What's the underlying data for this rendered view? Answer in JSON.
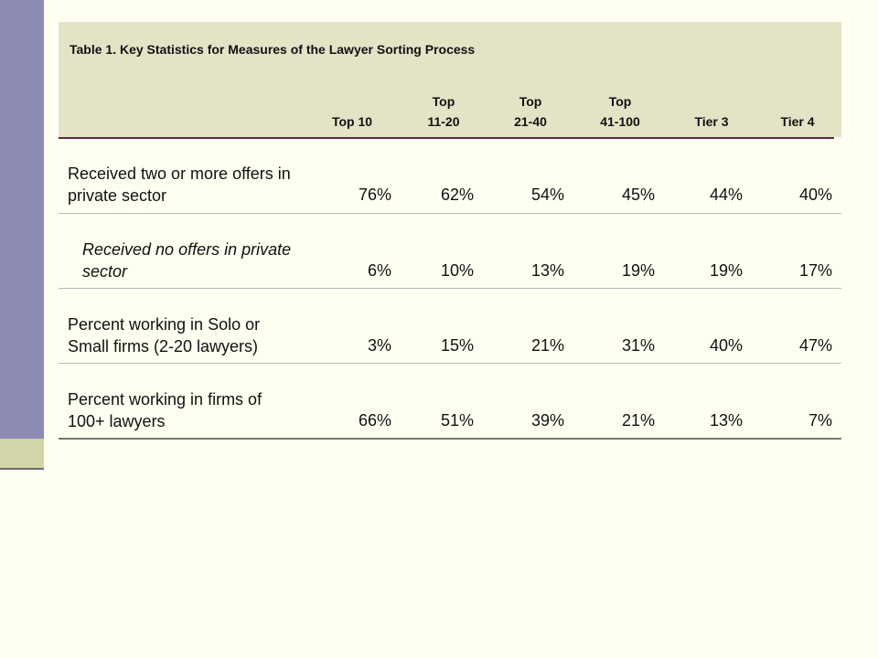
{
  "table": {
    "title": "Table 1. Key Statistics for Measures of the Lawyer Sorting Process",
    "columns": [
      {
        "line1": "Top 10",
        "line2": ""
      },
      {
        "line1": "Top",
        "line2": "11-20"
      },
      {
        "line1": "Top",
        "line2": "21-40"
      },
      {
        "line1": "Top",
        "line2": "41-100"
      },
      {
        "line1": "Tier 3",
        "line2": ""
      },
      {
        "line1": "Tier 4",
        "line2": ""
      }
    ],
    "rows": [
      {
        "label_line1": "Received two or more offers in",
        "label_line2": "private sector",
        "values": [
          "76%",
          "62%",
          "54%",
          "45%",
          "44%",
          "40%"
        ]
      },
      {
        "label_line1": "Received no offers in private",
        "label_line2": "sector",
        "values": [
          "6%",
          "10%",
          "13%",
          "19%",
          "19%",
          "17%"
        ]
      },
      {
        "label_line1": "Percent working in Solo or",
        "label_line2": "Small firms (2-20 lawyers)",
        "values": [
          "3%",
          "15%",
          "21%",
          "31%",
          "40%",
          "47%"
        ]
      },
      {
        "label_line1": "Percent working in firms of",
        "label_line2": "100+ lawyers",
        "values": [
          "66%",
          "51%",
          "39%",
          "21%",
          "13%",
          "7%"
        ]
      }
    ]
  },
  "colors": {
    "background": "#fffff1",
    "header_fill": "#e3e4c6",
    "sidebar_stripe": "#8c8cb3",
    "sidebar_block": "#d1d5a8",
    "header_rule": "#5b2a4a"
  }
}
